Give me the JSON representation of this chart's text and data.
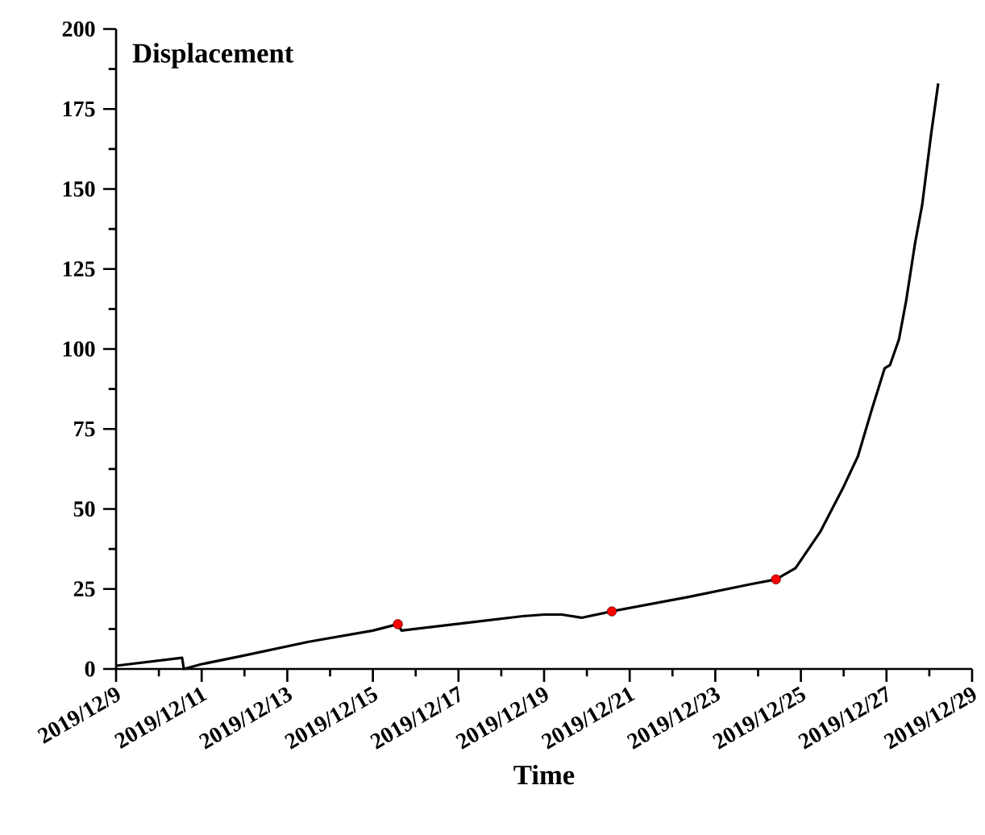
{
  "chart_data": {
    "type": "line",
    "xlabel": "Time",
    "ylabel": "Displacement",
    "xlim": [
      "2019-12-09",
      "2019-12-29"
    ],
    "ylim": [
      0,
      200
    ],
    "xticks": [
      {
        "value": "2019-12-09",
        "label": "2019/12/9"
      },
      {
        "value": "2019-12-11",
        "label": "2019/12/11"
      },
      {
        "value": "2019-12-13",
        "label": "2019/12/13"
      },
      {
        "value": "2019-12-15",
        "label": "2019/12/15"
      },
      {
        "value": "2019-12-17",
        "label": "2019/12/17"
      },
      {
        "value": "2019-12-19",
        "label": "2019/12/19"
      },
      {
        "value": "2019-12-21",
        "label": "2019/12/21"
      },
      {
        "value": "2019-12-23",
        "label": "2019/12/23"
      },
      {
        "value": "2019-12-25",
        "label": "2019/12/25"
      },
      {
        "value": "2019-12-27",
        "label": "2019/12/27"
      },
      {
        "value": "2019-12-29",
        "label": "2019/12/29"
      }
    ],
    "yticks": [
      0,
      25,
      50,
      75,
      100,
      125,
      150,
      175,
      200
    ],
    "series": [
      {
        "type": "line",
        "color": "#000000",
        "line_style": "solid",
        "marker": "none",
        "x": [
          "2019-12-09T00:00",
          "2019-12-10T13:00",
          "2019-12-10T14:00",
          "2019-12-11T00:00",
          "2019-12-11T22:00",
          "2019-12-13T12:00",
          "2019-12-15T00:00",
          "2019-12-15T14:00",
          "2019-12-15T16:00",
          "2019-12-17T06:00",
          "2019-12-18T12:00",
          "2019-12-19T00:00",
          "2019-12-19T10:00",
          "2019-12-19T21:00",
          "2019-12-20T14:00",
          "2019-12-22T09:00",
          "2019-12-23T20:00",
          "2019-12-24T10:00",
          "2019-12-24T21:00",
          "2019-12-25T11:00",
          "2019-12-26T00:00",
          "2019-12-26T08:00",
          "2019-12-26T16:00",
          "2019-12-26T23:00",
          "2019-12-27T02:00",
          "2019-12-27T07:00",
          "2019-12-27T11:00",
          "2019-12-27T16:00",
          "2019-12-27T20:00",
          "2019-12-28T01:00",
          "2019-12-28T05:00"
        ],
        "values": [
          1,
          3.5,
          0,
          1.5,
          4,
          8.5,
          12,
          14,
          12,
          14.5,
          16.5,
          17,
          17,
          16,
          18,
          22.5,
          26.5,
          28,
          31.5,
          43,
          57,
          66.5,
          81.5,
          94,
          95,
          103,
          115,
          133,
          145,
          167,
          183
        ]
      },
      {
        "type": "scatter",
        "color": "#ff0000",
        "marker": "circle",
        "x": [
          "2019-12-15T14:00",
          "2019-12-20T14:00",
          "2019-12-24T10:00"
        ],
        "values": [
          14,
          18,
          28
        ]
      }
    ]
  }
}
